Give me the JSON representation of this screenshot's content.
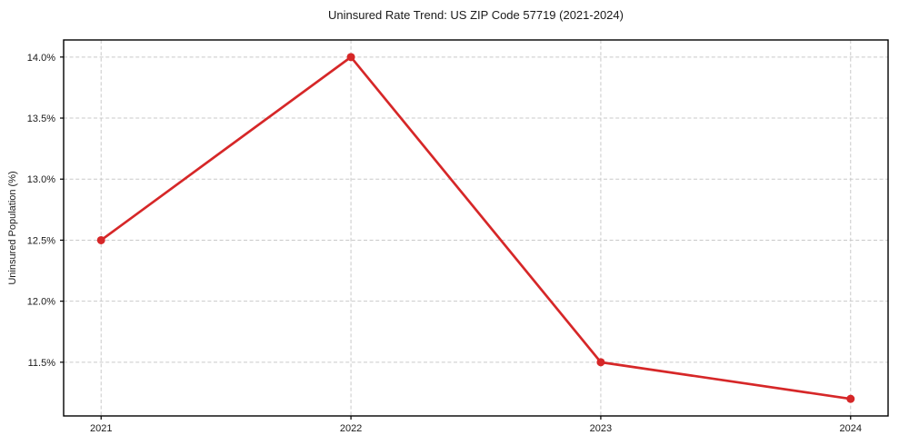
{
  "figure": {
    "background": "#ffffff"
  },
  "chart_data": {
    "type": "line",
    "title": "Uninsured Rate Trend: US ZIP Code 57719 (2021-2024)",
    "xlabel": "",
    "ylabel": "Uninsured Population (%)",
    "x": [
      2021,
      2022,
      2023,
      2024
    ],
    "values": [
      12.5,
      14.0,
      11.5,
      11.2
    ],
    "xlim": [
      2020.85,
      2024.15
    ],
    "ylim": [
      11.06,
      14.14
    ],
    "x_ticks": {
      "values": [
        2021,
        2022,
        2023,
        2024
      ],
      "labels": [
        "2021",
        "2022",
        "2023",
        "2024"
      ]
    },
    "y_ticks": {
      "values": [
        11.5,
        12.0,
        12.5,
        13.0,
        13.5,
        14.0
      ],
      "labels": [
        "11.5%",
        "12.0%",
        "12.5%",
        "13.0%",
        "13.5%",
        "14.0%"
      ]
    },
    "grid": true,
    "grid_style": "dashed",
    "legend": false,
    "marker": "circle",
    "colors": {
      "line": "#d62728",
      "marker": "#d62728",
      "grid": "#c9c9c9",
      "text": "#1a1a1a",
      "spine": "#000000"
    }
  }
}
